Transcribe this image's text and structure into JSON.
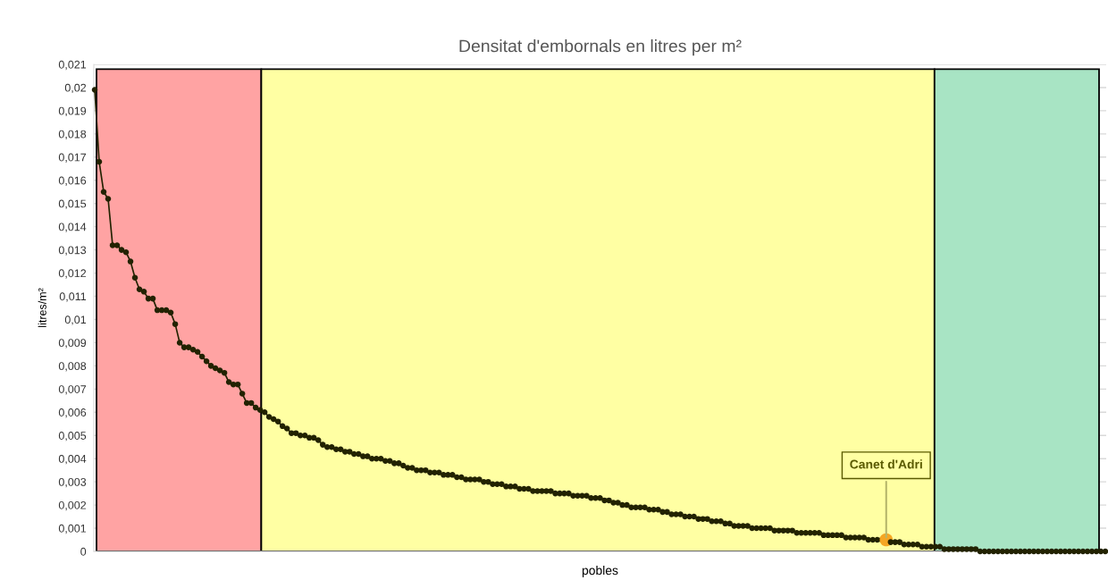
{
  "chart_data": {
    "type": "line",
    "title": "Densitat d'embornals en litres per m²",
    "xlabel": "pobles",
    "ylabel": "litres/m²",
    "categories": [
      null,
      null,
      null,
      null,
      null,
      null,
      null,
      null,
      null,
      null,
      null,
      null,
      null,
      null,
      null,
      null,
      null,
      null,
      null,
      null,
      null,
      null,
      null,
      null,
      null,
      null,
      null,
      null,
      null,
      null,
      null,
      null,
      null,
      null,
      null,
      null,
      null,
      null,
      null,
      null,
      null,
      null,
      null,
      null,
      null,
      null,
      null,
      null,
      null,
      null,
      null,
      null,
      null,
      null,
      null,
      null,
      null,
      null,
      null,
      null,
      null,
      null,
      null,
      null,
      null,
      null,
      null,
      null,
      null,
      null,
      null,
      null,
      null,
      null,
      null,
      null,
      null,
      null,
      null,
      null,
      null,
      null,
      null,
      null,
      null,
      null,
      null,
      null,
      null,
      null,
      null,
      null,
      null,
      null,
      null,
      null,
      null,
      null,
      null,
      null,
      null,
      null,
      null,
      null,
      null,
      null,
      null,
      null,
      null,
      null,
      null,
      null,
      null,
      null,
      null,
      null,
      null,
      null,
      null,
      null,
      null,
      null,
      null,
      null,
      null,
      null,
      null,
      null,
      null,
      null,
      null,
      null,
      null,
      null,
      null,
      null,
      null,
      null,
      null,
      null,
      null,
      null,
      null,
      null,
      null,
      null,
      null,
      null,
      null,
      null,
      null,
      null,
      null,
      null,
      null,
      null,
      null,
      null,
      null,
      null,
      null,
      null,
      null,
      null,
      null,
      null,
      null,
      null,
      null,
      null,
      null,
      null,
      null,
      null,
      null,
      null,
      null,
      null,
      null,
      null,
      null,
      null,
      null,
      null,
      null,
      null,
      null,
      null,
      null,
      null,
      null,
      null,
      null,
      null,
      null,
      null,
      null,
      null,
      null,
      null,
      null,
      null,
      null,
      null,
      null,
      null,
      null,
      null,
      null,
      null,
      null,
      null,
      null,
      null,
      null,
      null,
      null,
      null,
      null,
      null,
      null,
      null,
      null,
      null,
      null,
      null,
      null
    ],
    "series": [
      {
        "color": "#222200",
        "colors": [
          "#222200",
          "#222200",
          "#222200",
          "#222200",
          "#222200",
          "#222200",
          "#222200",
          "#222200",
          "#222200",
          "#222200",
          "#222200",
          "#222200",
          "#222200",
          "#222200",
          "#222200",
          "#222200",
          "#222200",
          "#222200",
          "#222200",
          "#222200",
          "#222200",
          "#222200",
          "#222200",
          "#222200",
          "#222200",
          "#222200",
          "#222200",
          "#222200",
          "#222200",
          "#222200",
          "#222200",
          "#222200",
          "#222200",
          "#222200",
          "#222200",
          "#222200",
          "#222200",
          "#222200",
          "#222200",
          "#222200",
          "#222200",
          "#222200",
          "#222200",
          "#222200",
          "#222200",
          "#222200",
          "#222200",
          "#222200",
          "#222200",
          "#222200",
          "#222200",
          "#222200",
          "#222200",
          "#222200",
          "#222200",
          "#222200",
          "#222200",
          "#222200",
          "#222200",
          "#222200",
          "#222200",
          "#222200",
          "#222200",
          "#222200",
          "#222200",
          "#222200",
          "#222200",
          "#222200",
          "#222200",
          "#222200",
          "#222200",
          "#222200",
          "#222200",
          "#222200",
          "#222200",
          "#222200",
          "#222200",
          "#222200",
          "#222200",
          "#222200",
          "#222200",
          "#222200",
          "#222200",
          "#222200",
          "#222200",
          "#222200",
          "#222200",
          "#222200",
          "#222200",
          "#222200",
          "#222200",
          "#222200",
          "#222200",
          "#222200",
          "#222200",
          "#222200",
          "#222200",
          "#222200",
          "#222200",
          "#222200",
          "#222200",
          "#222200",
          "#222200",
          "#222200",
          "#222200",
          "#222200",
          "#222200",
          "#222200",
          "#222200",
          "#222200",
          "#222200",
          "#222200",
          "#222200",
          "#222200",
          "#222200",
          "#222200",
          "#222200",
          "#222200",
          "#222200",
          "#222200",
          "#222200",
          "#222200",
          "#222200",
          "#222200",
          "#222200",
          "#222200",
          "#222200",
          "#222200",
          "#222200",
          "#222200",
          "#222200",
          "#222200",
          "#222200",
          "#222200",
          "#222200",
          "#222200",
          "#222200",
          "#222200",
          "#222200",
          "#222200",
          "#222200",
          "#222200",
          "#222200",
          "#222200",
          "#222200",
          "#222200",
          "#222200",
          "#222200",
          "#222200",
          "#222200",
          "#222200",
          "#222200",
          "#222200",
          "#222200",
          "#222200",
          "#222200",
          "#222200",
          "#222200",
          "#222200",
          "#222200",
          "#222200",
          "#222200",
          "#222200",
          "#222200",
          "#222200",
          "#222200",
          "#222200",
          "#222200",
          "#222200",
          "#222200",
          "#222200",
          "#222200",
          "#222200",
          "#222200",
          "#222200",
          "#222200",
          "#222200",
          "#f5a623",
          "#222200",
          "#222200",
          "#222200",
          "#222200",
          "#222200",
          "#222200",
          "#222200",
          "#222200",
          "#222200",
          "#222200",
          "#222200",
          "#222200",
          "#222200",
          "#222200",
          "#222200",
          "#222200",
          "#222200",
          "#222200",
          "#222200",
          "#222200",
          "#222200",
          "#222200",
          "#222200",
          "#222200",
          "#222200",
          "#222200",
          "#222200",
          "#222200",
          "#222200",
          "#222200",
          "#222200",
          "#222200",
          "#222200",
          "#222200",
          "#222200",
          "#222200",
          "#222200",
          "#222200",
          "#222200",
          "#222200",
          "#222200",
          "#222200",
          "#222200",
          "#222200",
          "#222200",
          "#222200",
          "#222200",
          "#222200",
          "#222200"
        ],
        "values": [
          0.0199,
          0.0168,
          0.0155,
          0.0152,
          0.0132,
          0.0132,
          0.013,
          0.0129,
          0.0125,
          0.0118,
          0.0113,
          0.0112,
          0.0109,
          0.0109,
          0.0104,
          0.0104,
          0.0104,
          0.0103,
          0.0098,
          0.009,
          0.0088,
          0.0088,
          0.0087,
          0.0086,
          0.0084,
          0.0082,
          0.008,
          0.0079,
          0.0078,
          0.0077,
          0.0073,
          0.0072,
          0.0072,
          0.0068,
          0.0064,
          0.0064,
          0.0062,
          0.0061,
          0.006,
          0.0058,
          0.0057,
          0.0056,
          0.0054,
          0.0053,
          0.0051,
          0.0051,
          0.005,
          0.005,
          0.0049,
          0.0049,
          0.0048,
          0.0046,
          0.0045,
          0.0045,
          0.0044,
          0.0044,
          0.0043,
          0.0043,
          0.0042,
          0.0042,
          0.0041,
          0.0041,
          0.004,
          0.004,
          0.004,
          0.0039,
          0.0039,
          0.0038,
          0.0038,
          0.0037,
          0.0036,
          0.0036,
          0.0035,
          0.0035,
          0.0035,
          0.0034,
          0.0034,
          0.0034,
          0.0033,
          0.0033,
          0.0033,
          0.0032,
          0.0032,
          0.0031,
          0.0031,
          0.0031,
          0.0031,
          0.003,
          0.003,
          0.0029,
          0.0029,
          0.0029,
          0.0028,
          0.0028,
          0.0028,
          0.0027,
          0.0027,
          0.0027,
          0.0026,
          0.0026,
          0.0026,
          0.0026,
          0.0026,
          0.0025,
          0.0025,
          0.0025,
          0.0025,
          0.0024,
          0.0024,
          0.0024,
          0.0024,
          0.0023,
          0.0023,
          0.0023,
          0.0022,
          0.0022,
          0.0021,
          0.0021,
          0.002,
          0.002,
          0.0019,
          0.0019,
          0.0019,
          0.0019,
          0.0018,
          0.0018,
          0.0018,
          0.0017,
          0.0017,
          0.0016,
          0.0016,
          0.0016,
          0.0015,
          0.0015,
          0.0015,
          0.0014,
          0.0014,
          0.0014,
          0.0013,
          0.0013,
          0.0013,
          0.0012,
          0.0012,
          0.0011,
          0.0011,
          0.0011,
          0.0011,
          0.001,
          0.001,
          0.001,
          0.001,
          0.001,
          0.0009,
          0.0009,
          0.0009,
          0.0009,
          0.0009,
          0.0008,
          0.0008,
          0.0008,
          0.0008,
          0.0008,
          0.0008,
          0.0007,
          0.0007,
          0.0007,
          0.0007,
          0.0007,
          0.0006,
          0.0006,
          0.0006,
          0.0006,
          0.0006,
          0.0005,
          0.0005,
          0.0005,
          0.0005,
          0.0005,
          0.0004,
          0.0004,
          0.0004,
          0.0003,
          0.0003,
          0.0003,
          0.0003,
          0.0002,
          0.0002,
          0.0002,
          0.0002,
          0.0002,
          0.0001,
          0.0001,
          0.0001,
          0.0001,
          0.0001,
          0.0001,
          0.0001,
          0.0001,
          0,
          0,
          0,
          0,
          0,
          0,
          0,
          0,
          0,
          0,
          0,
          0,
          0,
          0,
          0,
          0,
          0,
          0,
          0,
          0,
          0,
          0,
          0,
          0,
          0,
          0,
          0,
          0,
          0
        ]
      }
    ],
    "marker": "circle",
    "line_style": "solid",
    "annotations": [
      "Canet d'Adri"
    ],
    "ylim": [
      0,
      0.021
    ],
    "yticks": [
      {
        "value": 0,
        "label": "0"
      },
      {
        "value": 0.001,
        "label": "0,001"
      },
      {
        "value": 0.002,
        "label": "0,002"
      },
      {
        "value": 0.003,
        "label": "0,003"
      },
      {
        "value": 0.004,
        "label": "0,004"
      },
      {
        "value": 0.005,
        "label": "0,005"
      },
      {
        "value": 0.006,
        "label": "0,006"
      },
      {
        "value": 0.007,
        "label": "0,007"
      },
      {
        "value": 0.008,
        "label": "0,008"
      },
      {
        "value": 0.009,
        "label": "0,009"
      },
      {
        "value": 0.01,
        "label": "0,01"
      },
      {
        "value": 0.011,
        "label": "0,011"
      },
      {
        "value": 0.012,
        "label": "0,012"
      },
      {
        "value": 0.013,
        "label": "0,013"
      },
      {
        "value": 0.014,
        "label": "0,014"
      },
      {
        "value": 0.015,
        "label": "0,015"
      },
      {
        "value": 0.016,
        "label": "0,016"
      },
      {
        "value": 0.017,
        "label": "0,017"
      },
      {
        "value": 0.018,
        "label": "0,018"
      },
      {
        "value": 0.019,
        "label": "0,019"
      },
      {
        "value": 0.02,
        "label": "0,02"
      },
      {
        "value": 0.021,
        "label": "0,021"
      }
    ],
    "grid": "y",
    "legend": false
  }
}
